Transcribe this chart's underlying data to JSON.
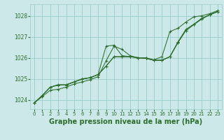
{
  "background_color": "#cce8e8",
  "grid_color": "#99cccc",
  "line_color": "#2d6e2d",
  "xlabel": "Graphe pression niveau de la mer (hPa)",
  "xlabel_fontsize": 7,
  "ylim": [
    1023.55,
    1028.55
  ],
  "xlim": [
    -0.5,
    23.5
  ],
  "yticks": [
    1024,
    1025,
    1026,
    1027,
    1028
  ],
  "xticks": [
    0,
    1,
    2,
    3,
    4,
    5,
    6,
    7,
    8,
    9,
    10,
    11,
    12,
    13,
    14,
    15,
    16,
    17,
    18,
    19,
    20,
    21,
    22,
    23
  ],
  "series": [
    [
      1023.85,
      1024.15,
      1024.45,
      1024.5,
      1024.6,
      1024.75,
      1024.85,
      1024.95,
      1025.1,
      1025.85,
      1026.55,
      1026.4,
      1026.1,
      1026.0,
      1026.0,
      1025.9,
      1026.05,
      1027.25,
      1027.4,
      1027.7,
      1027.95,
      1028.0,
      1028.1,
      1028.25
    ],
    [
      1023.85,
      1024.2,
      1024.6,
      1024.7,
      1024.7,
      1024.85,
      1025.0,
      1025.05,
      1025.2,
      1025.6,
      1026.05,
      1026.05,
      1026.05,
      1026.0,
      1025.97,
      1025.88,
      1025.88,
      1026.05,
      1026.75,
      1027.35,
      1027.6,
      1027.88,
      1028.05,
      1028.2
    ],
    [
      1023.85,
      1024.2,
      1024.6,
      1024.7,
      1024.7,
      1024.85,
      1024.98,
      1025.05,
      1025.2,
      1025.6,
      1026.05,
      1026.05,
      1026.05,
      1026.0,
      1025.97,
      1025.88,
      1025.88,
      1026.05,
      1026.72,
      1027.3,
      1027.58,
      1027.85,
      1028.05,
      1028.2
    ],
    [
      1023.85,
      1024.2,
      1024.6,
      1024.72,
      1024.72,
      1024.85,
      1024.98,
      1025.05,
      1025.2,
      1026.55,
      1026.6,
      1026.1,
      1026.05,
      1026.0,
      1025.97,
      1025.88,
      1025.88,
      1026.05,
      1026.72,
      1027.3,
      1027.58,
      1027.85,
      1028.05,
      1028.2
    ]
  ]
}
